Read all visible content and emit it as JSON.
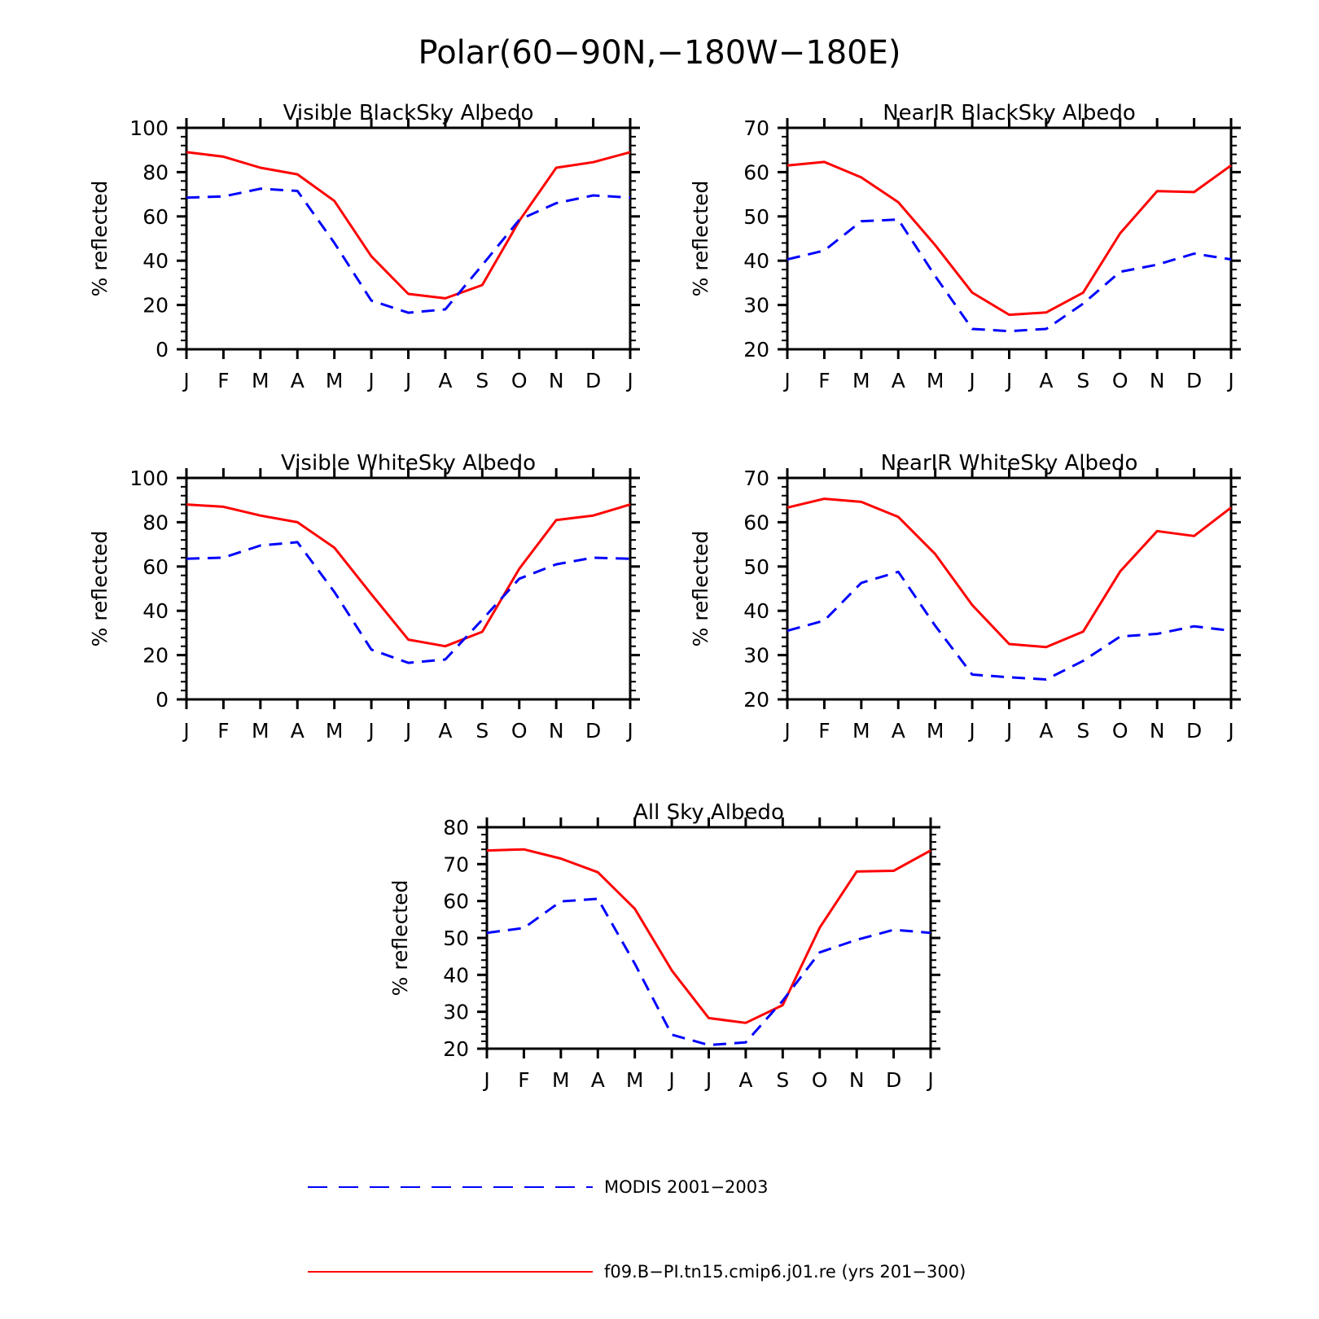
{
  "figure": {
    "title": "Polar(60−90N,−180W−180E)"
  },
  "colors": {
    "model": "#ff0000",
    "obs": "#0000ff",
    "axes": "#000000"
  },
  "legend": {
    "placement": "bottom",
    "items": [
      {
        "label": "MODIS 2001−2003",
        "color": "#0000ff",
        "dash": "dashed"
      },
      {
        "label": "f09.B−PI.tn15.cmip6.j01.re (yrs 201−300)",
        "color": "#ff0000",
        "dash": "solid"
      }
    ]
  },
  "chart_data": [
    {
      "type": "line",
      "title": "Visible BlackSky Albedo",
      "xlabel": "",
      "ylabel": "% reflected",
      "categories": [
        "J",
        "F",
        "M",
        "A",
        "M",
        "J",
        "J",
        "A",
        "S",
        "O",
        "N",
        "D",
        "J"
      ],
      "ylim": [
        0,
        100
      ],
      "yticks": [
        0,
        20,
        40,
        60,
        80,
        100
      ],
      "grid": false,
      "series": [
        {
          "name": "f09.B−PI.tn15.cmip6.j01.re (yrs 201−300)",
          "values": [
            89,
            87,
            82,
            79,
            67,
            42,
            25,
            23,
            29,
            58,
            82,
            84.5,
            89
          ]
        },
        {
          "name": "MODIS 2001−2003",
          "values": [
            68.5,
            69,
            72.5,
            71.5,
            48,
            22,
            16.5,
            18,
            38,
            58.5,
            66,
            69.5,
            68.5
          ]
        }
      ]
    },
    {
      "type": "line",
      "title": "NearIR BlackSky Albedo",
      "xlabel": "",
      "ylabel": "% reflected",
      "categories": [
        "J",
        "F",
        "M",
        "A",
        "M",
        "J",
        "J",
        "A",
        "S",
        "O",
        "N",
        "D",
        "J"
      ],
      "ylim": [
        20,
        70
      ],
      "yticks": [
        20,
        30,
        40,
        50,
        60,
        70
      ],
      "grid": false,
      "series": [
        {
          "name": "f09.B−PI.tn15.cmip6.j01.re (yrs 201−300)",
          "values": [
            61.5,
            62.3,
            58.8,
            53.2,
            43.5,
            32.8,
            27.8,
            28.3,
            32.8,
            46.2,
            55.7,
            55.5,
            61.5
          ]
        },
        {
          "name": "MODIS 2001−2003",
          "values": [
            40.3,
            42.3,
            48.9,
            49.3,
            36.5,
            24.6,
            24.1,
            24.6,
            30.3,
            37.5,
            39.1,
            41.6,
            40.3
          ]
        }
      ]
    },
    {
      "type": "line",
      "title": "Visible WhiteSky Albedo",
      "xlabel": "",
      "ylabel": "% reflected",
      "categories": [
        "J",
        "F",
        "M",
        "A",
        "M",
        "J",
        "J",
        "A",
        "S",
        "O",
        "N",
        "D",
        "J"
      ],
      "ylim": [
        0,
        100
      ],
      "yticks": [
        0,
        20,
        40,
        60,
        80,
        100
      ],
      "grid": false,
      "series": [
        {
          "name": "f09.B−PI.tn15.cmip6.j01.re (yrs 201−300)",
          "values": [
            88,
            87,
            83,
            80,
            68.5,
            47.5,
            27,
            24,
            30.5,
            59,
            81,
            83,
            88
          ]
        },
        {
          "name": "MODIS 2001−2003",
          "values": [
            63.5,
            64,
            69.5,
            71,
            48.5,
            22.5,
            16.5,
            18,
            36,
            54.5,
            61,
            64,
            63.5
          ]
        }
      ]
    },
    {
      "type": "line",
      "title": "NearIR WhiteSky Albedo",
      "xlabel": "",
      "ylabel": "% reflected",
      "categories": [
        "J",
        "F",
        "M",
        "A",
        "M",
        "J",
        "J",
        "A",
        "S",
        "O",
        "N",
        "D",
        "J"
      ],
      "ylim": [
        20,
        70
      ],
      "yticks": [
        20,
        30,
        40,
        50,
        60,
        70
      ],
      "grid": false,
      "series": [
        {
          "name": "f09.B−PI.tn15.cmip6.j01.re (yrs 201−300)",
          "values": [
            63.3,
            65.3,
            64.6,
            61.2,
            52.8,
            41.3,
            32.5,
            31.8,
            35.3,
            48.9,
            58,
            56.9,
            63.3
          ]
        },
        {
          "name": "MODIS 2001−2003",
          "values": [
            35.5,
            37.8,
            46.3,
            48.8,
            36.6,
            25.6,
            25,
            24.5,
            28.7,
            34.2,
            34.8,
            36.5,
            35.5
          ]
        }
      ]
    },
    {
      "type": "line",
      "title": "All Sky Albedo",
      "xlabel": "",
      "ylabel": "% reflected",
      "categories": [
        "J",
        "F",
        "M",
        "A",
        "M",
        "J",
        "J",
        "A",
        "S",
        "O",
        "N",
        "D",
        "J"
      ],
      "ylim": [
        20,
        80
      ],
      "yticks": [
        20,
        30,
        40,
        50,
        60,
        70,
        80
      ],
      "grid": false,
      "series": [
        {
          "name": "f09.B−PI.tn15.cmip6.j01.re (yrs 201−300)",
          "values": [
            73.7,
            74,
            71.5,
            67.8,
            57.9,
            41.2,
            28.3,
            27,
            31.8,
            52.8,
            68,
            68.2,
            73.7
          ]
        },
        {
          "name": "MODIS 2001−2003",
          "values": [
            51.4,
            52.7,
            59.9,
            60.6,
            43,
            23.8,
            21,
            21.7,
            33,
            46.1,
            49.5,
            52.2,
            51.4
          ]
        }
      ]
    }
  ]
}
